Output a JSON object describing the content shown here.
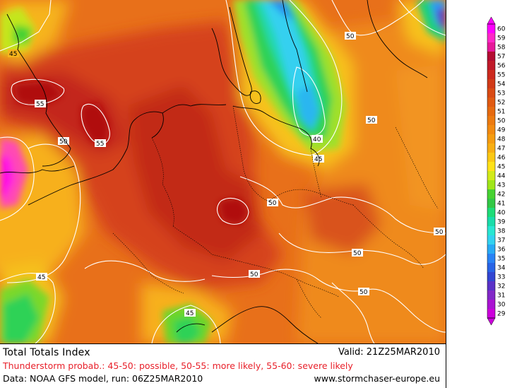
{
  "footer": {
    "title": "Total Totals Index",
    "valid": "Valid: 21Z25MAR2010",
    "thunderstorm": "Thunderstorm probab.: 45-50: possible, 50-55: more likely, 55-60: severe likely",
    "data_info": "Data: NOAA GFS model, run: 06Z25MAR2010",
    "website": "www.stormchaser-europe.eu"
  },
  "contour_labels": [
    "45",
    "55",
    "55",
    "50",
    "50",
    "50",
    "40",
    "45",
    "50",
    "50",
    "50",
    "50",
    "50",
    "45",
    "45"
  ],
  "legend": {
    "values": [
      "60",
      "59",
      "58",
      "57",
      "56",
      "55",
      "54",
      "53",
      "52",
      "51",
      "50",
      "49",
      "48",
      "47",
      "46",
      "45",
      "44",
      "43",
      "42",
      "41",
      "40",
      "39",
      "38",
      "37",
      "36",
      "35",
      "34",
      "33",
      "32",
      "31",
      "30",
      "29"
    ],
    "colors": [
      "#ff00ff",
      "#ff28c8",
      "#e6199a",
      "#b30d32",
      "#c01a2a",
      "#cc2a1e",
      "#d13a18",
      "#d94a14",
      "#e05a12",
      "#e66a10",
      "#ec7a10",
      "#f28a10",
      "#f59c10",
      "#f8ae12",
      "#fbc814",
      "#ffe219",
      "#d2eb19",
      "#a0e619",
      "#46d232",
      "#32c846",
      "#1edc78",
      "#19dcaa",
      "#28e6d2",
      "#32d2f0",
      "#28aaf5",
      "#2882f5",
      "#2864e6",
      "#3246d2",
      "#5a32c8",
      "#8228c8",
      "#aa14d2",
      "#cc00dc"
    ]
  },
  "colors": {
    "background_orange": "#ec7a10",
    "dark_red": "#b8200e",
    "thunder_text": "#e8202a"
  }
}
